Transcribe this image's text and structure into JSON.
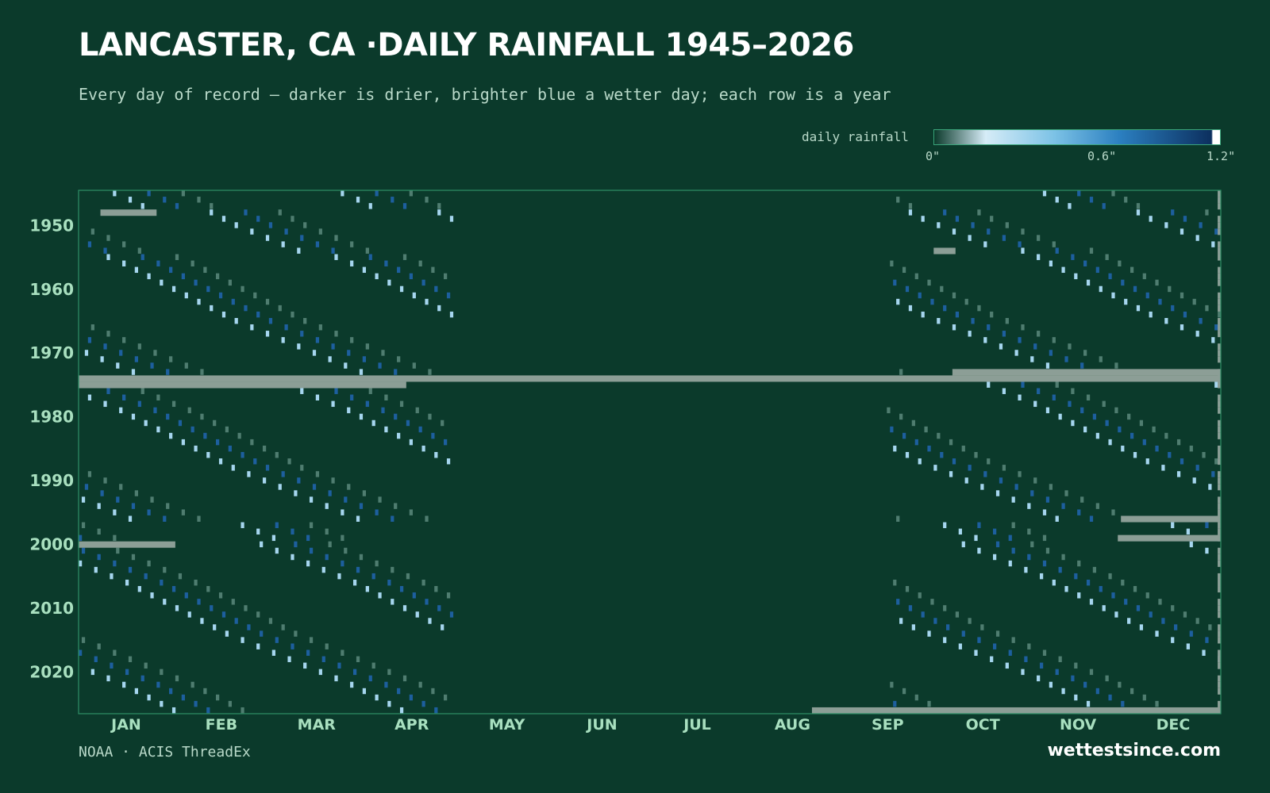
{
  "header": {
    "title": "LANCASTER, CA ·DAILY RAINFALL 1945–2026",
    "subtitle": "Every day of record — darker is drier, brighter blue a wetter day; each row is a year"
  },
  "legend": {
    "label": "daily rainfall",
    "ticks": [
      "0\"",
      "0.6\"",
      "1.2\""
    ]
  },
  "footer": {
    "source": "NOAA · ACIS ThreadEx",
    "brand": "wettestsince.com"
  },
  "colors": {
    "background": "#0b3a2b",
    "missing": "#8c9e96",
    "frame": "#2f8f67",
    "scale": [
      "#0b3a2b",
      "#cfe8f5",
      "#7cc2e6",
      "#2b7fc0",
      "#0c3a6b",
      "#ffffff"
    ]
  },
  "chart_data": {
    "type": "heatmap",
    "x_axis": "day of year",
    "y_axis": "year",
    "year_range": [
      1945,
      2026
    ],
    "year_ticks": [
      "1950",
      "1960",
      "1970",
      "1980",
      "1990",
      "2000",
      "2010",
      "2020"
    ],
    "month_labels": [
      "JAN",
      "FEB",
      "MAR",
      "APR",
      "MAY",
      "JUN",
      "JUL",
      "AUG",
      "SEP",
      "OCT",
      "NOV",
      "DEC"
    ],
    "value_unit": "inches",
    "value_range": [
      0,
      1.2
    ],
    "wet_season_days": [
      [
        1,
        120
      ],
      [
        260,
        366
      ]
    ],
    "missing_spans": [
      {
        "year": 1948,
        "from_day": 8,
        "to_day": 25
      },
      {
        "year": 1954,
        "from_day": 275,
        "to_day": 281
      },
      {
        "year": 1973,
        "from_day": 281,
        "to_day": 366
      },
      {
        "year": 1974,
        "from_day": 1,
        "to_day": 366
      },
      {
        "year": 1975,
        "from_day": 1,
        "to_day": 105
      },
      {
        "year": 1996,
        "from_day": 335,
        "to_day": 366
      },
      {
        "year": 1999,
        "from_day": 334,
        "to_day": 366
      },
      {
        "year": 2000,
        "from_day": 1,
        "to_day": 31
      },
      {
        "year": 2026,
        "from_day": 236,
        "to_day": 366
      }
    ]
  }
}
